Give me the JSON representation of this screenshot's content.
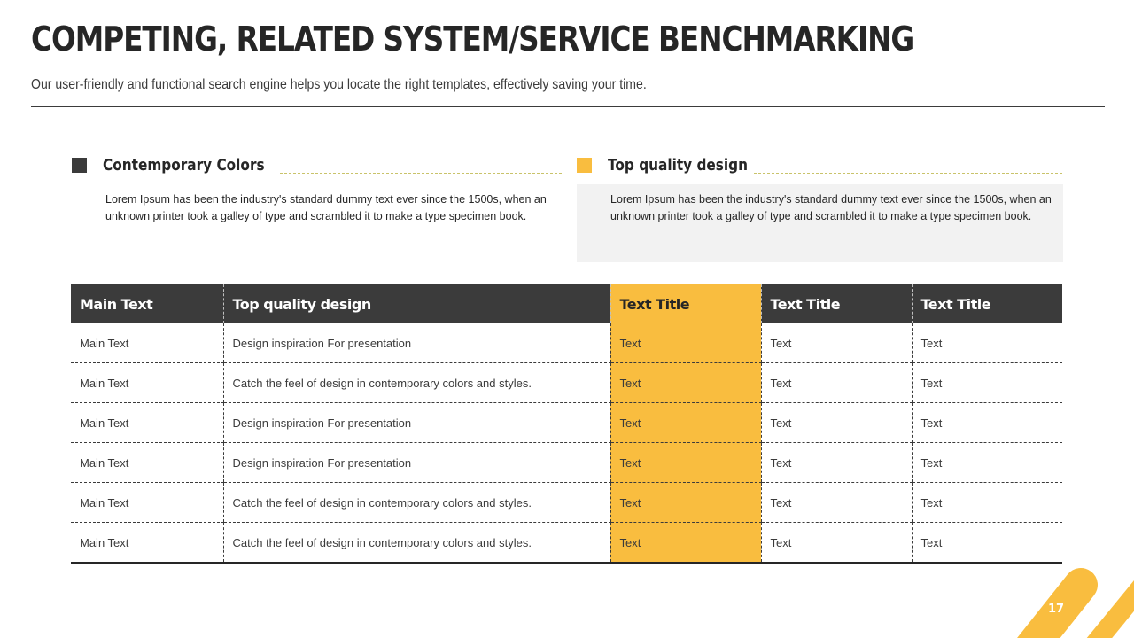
{
  "header": {
    "title": "COMPETING, RELATED SYSTEM/SERVICE BENCHMARKING",
    "subtitle": "Our user-friendly and functional search engine helps you locate the right templates, effectively saving your time."
  },
  "features": [
    {
      "title": "Contemporary Colors",
      "body": "Lorem Ipsum has been the industry's standard dummy text ever since the 1500s, when an unknown printer took a galley of type and scrambled it to make a type specimen book.",
      "square_color": "#3b3b3b"
    },
    {
      "title": "Top quality design",
      "body": "Lorem Ipsum has been the industry's standard dummy text ever since the 1500s, when an unknown printer took a galley of type and scrambled it to make a type specimen book.",
      "square_color": "#f9bd3f"
    }
  ],
  "table": {
    "headers": [
      "Main Text",
      "Top quality design",
      "Text Title",
      "Text Title",
      "Text Title"
    ],
    "highlight_column": 2,
    "rows": [
      [
        "Main Text",
        "Design inspiration For presentation",
        "Text",
        "Text",
        "Text"
      ],
      [
        "Main Text",
        "Catch the feel of design in contemporary colors and styles.",
        "Text",
        "Text",
        "Text"
      ],
      [
        "Main Text",
        "Design inspiration For presentation",
        "Text",
        "Text",
        "Text"
      ],
      [
        "Main Text",
        "Design inspiration For presentation",
        "Text",
        "Text",
        "Text"
      ],
      [
        "Main Text",
        "Catch the feel of design in contemporary colors and styles.",
        "Text",
        "Text",
        "Text"
      ],
      [
        "Main Text",
        "Catch the feel of design in contemporary colors and styles.",
        "Text",
        "Text",
        "Text"
      ]
    ]
  },
  "footer": {
    "page_number": "17"
  },
  "colors": {
    "accent": "#f9bd3f",
    "dark": "#3b3b3b",
    "shade": "#f2f2f2"
  }
}
